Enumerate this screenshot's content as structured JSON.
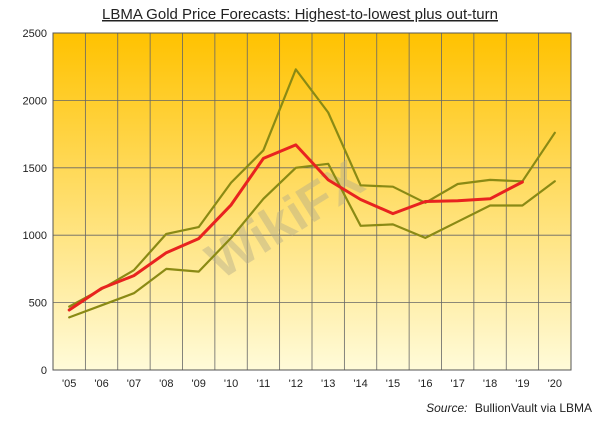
{
  "chart_data": {
    "type": "line",
    "title": "LBMA Gold Price Forecasts: Highest-to-lowest plus out-turn",
    "categories": [
      "'05",
      "'06",
      "'07",
      "'08",
      "'09",
      "'10",
      "'11",
      "'12",
      "'13",
      "'14",
      "'15",
      "'16",
      "'17",
      "'18",
      "'19",
      "'20"
    ],
    "ylim": [
      0,
      2500
    ],
    "yticks": [
      0,
      500,
      1000,
      1500,
      2000,
      2500
    ],
    "grid": true,
    "series": [
      {
        "role": "highest",
        "color": "#8a8a14",
        "values": [
          470,
          600,
          740,
          1010,
          1060,
          1390,
          1630,
          2230,
          1910,
          1370,
          1360,
          1240,
          1380,
          1410,
          1400,
          1760
        ]
      },
      {
        "role": "lowest",
        "color": "#8a8a14",
        "values": [
          390,
          480,
          570,
          750,
          730,
          980,
          1270,
          1500,
          1530,
          1070,
          1080,
          980,
          1100,
          1220,
          1220,
          1400
        ]
      },
      {
        "role": "out-turn",
        "color": "#e8231f",
        "values": [
          445,
          605,
          700,
          870,
          975,
          1225,
          1570,
          1670,
          1410,
          1265,
          1160,
          1250,
          1255,
          1270,
          1395,
          null
        ]
      }
    ],
    "source_prefix": "Source:",
    "source_text": "BullionVault via LBMA",
    "background_top": "#ffc200",
    "background_bottom": "#fffbd9"
  },
  "watermark": "WikiFX"
}
